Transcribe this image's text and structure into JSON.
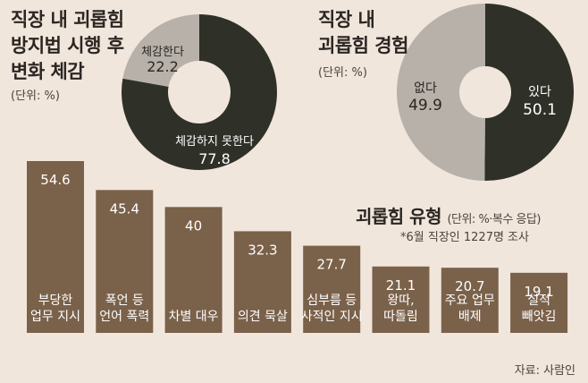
{
  "pie1": {
    "title_lines": [
      "직장 내 괴롭힘",
      "방지법 시행 후",
      "변화 체감"
    ],
    "unit": "(단위: %)"
  },
  "pie2": {
    "title_lines": [
      "직장 내",
      "괴롭힘 경험"
    ],
    "unit": "(단위: %)"
  },
  "bars": {
    "title": "괴롭힘 유형",
    "unit": "(단위: %·복수 응답)",
    "note": "*6월 직장인 1227명 조사"
  },
  "source": "자료: 사람인",
  "colors": {
    "background": "#f1e6dc",
    "bar": "#7a614a",
    "dark": "#2f3128",
    "light_gray": "#b7b1aa"
  },
  "chart_data": [
    {
      "type": "pie",
      "donut": true,
      "title": "직장 내 괴롭힘 방지법 시행 후 변화 체감",
      "unit": "%",
      "categories": [
        "체감하지 못한다",
        "체감한다"
      ],
      "values": [
        77.8,
        22.2
      ],
      "colors": [
        "#2f3128",
        "#b7b1aa"
      ]
    },
    {
      "type": "pie",
      "donut": true,
      "title": "직장 내 괴롭힘 경험",
      "unit": "%",
      "categories": [
        "있다",
        "없다"
      ],
      "values": [
        50.1,
        49.9
      ],
      "colors": [
        "#2f3128",
        "#b7b1aa"
      ]
    },
    {
      "type": "bar",
      "title": "괴롭힘 유형",
      "unit": "%",
      "categories": [
        [
          "부당한",
          "업무 지시"
        ],
        [
          "폭언 등",
          "언어 폭력"
        ],
        [
          "차별 대우"
        ],
        [
          "의견 묵살"
        ],
        [
          "심부름 등",
          "사적인 지시"
        ],
        [
          "왕따,",
          "따돌림"
        ],
        [
          "주요 업무",
          "배제"
        ],
        [
          "실적",
          "빼앗김"
        ]
      ],
      "values": [
        54.6,
        45.4,
        40,
        32.3,
        27.7,
        21.1,
        20.7,
        19.1
      ],
      "value_labels": [
        "54.6",
        "45.4",
        "40",
        "32.3",
        "27.7",
        "21.1",
        "20.7",
        "19.1"
      ],
      "grid": false
    }
  ]
}
